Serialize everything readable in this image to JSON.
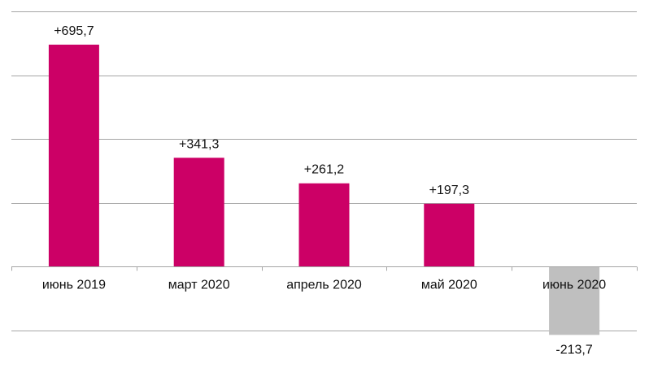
{
  "chart_data": {
    "type": "bar",
    "categories": [
      "июнь 2019",
      "март 2020",
      "апрель 2020",
      "май 2020",
      "июнь 2020"
    ],
    "values": [
      695.7,
      341.3,
      261.2,
      197.3,
      -213.7
    ],
    "data_labels": [
      "+695,7",
      "+341,3",
      "+261,2",
      "+197,3",
      "-213,7"
    ],
    "ylim": [
      -200,
      800
    ],
    "grid": true,
    "colors": {
      "positive": "#CC0066",
      "negative": "#BFBFBF",
      "grid": "#A6A6A6"
    }
  }
}
